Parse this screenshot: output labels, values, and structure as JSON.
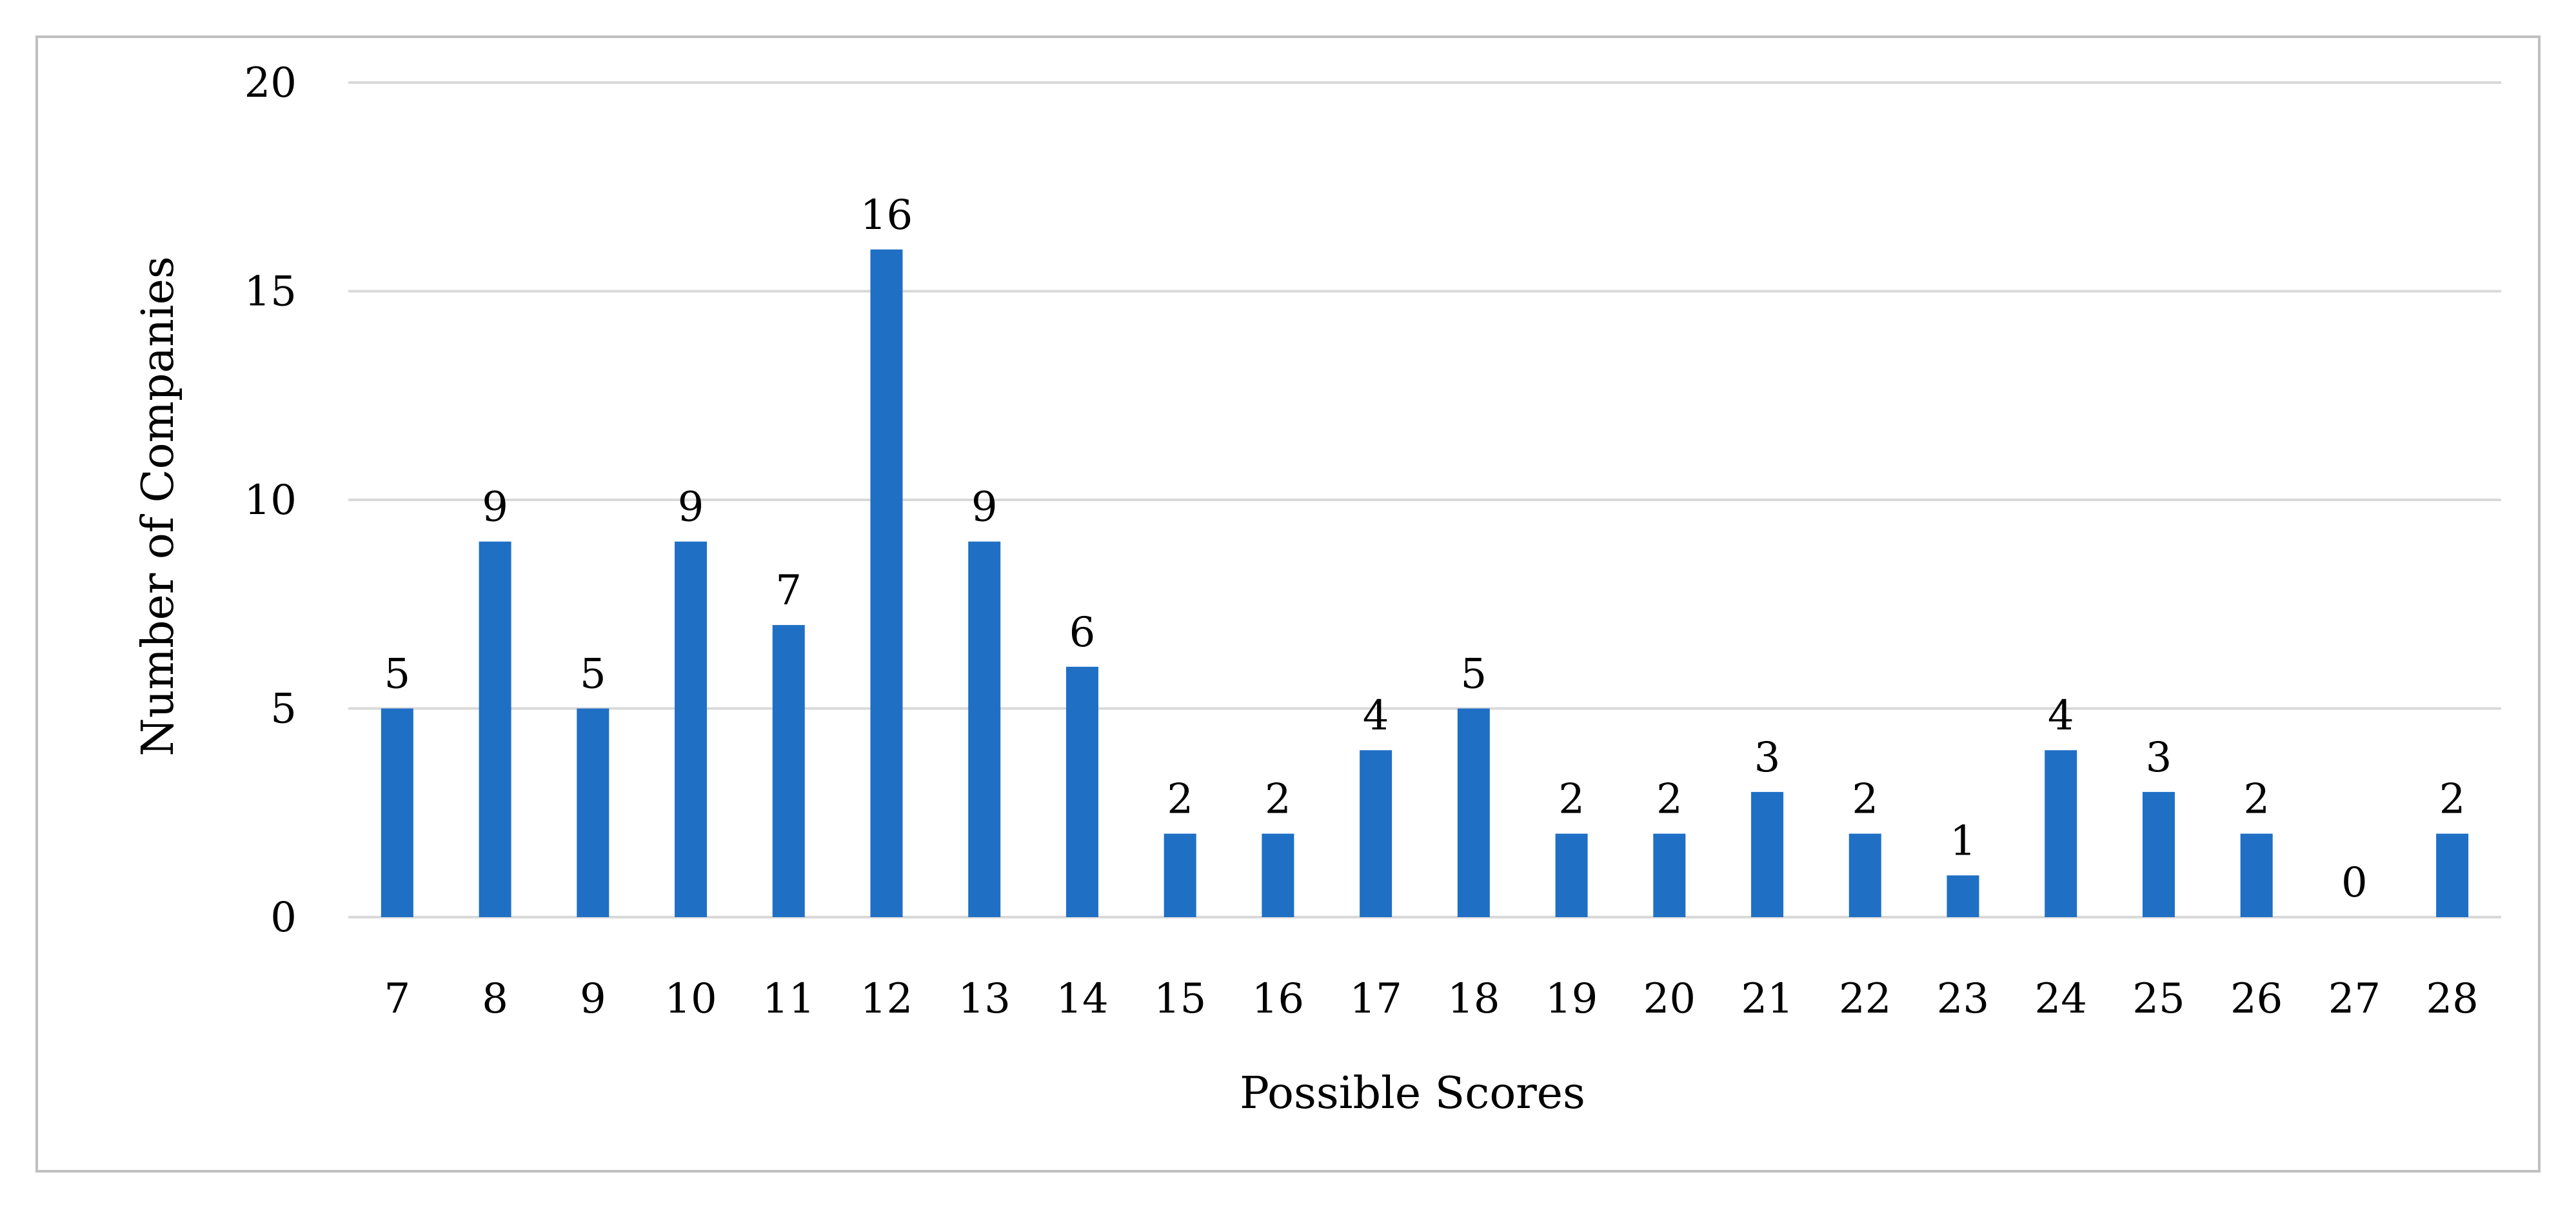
{
  "chart_data": {
    "type": "bar",
    "title": "",
    "xlabel": "Possible Scores",
    "ylabel": "Number of Companies",
    "categories": [
      "7",
      "8",
      "9",
      "10",
      "11",
      "12",
      "13",
      "14",
      "15",
      "16",
      "17",
      "18",
      "19",
      "20",
      "21",
      "22",
      "23",
      "24",
      "25",
      "26",
      "27",
      "28"
    ],
    "values": [
      5,
      9,
      5,
      9,
      7,
      16,
      9,
      6,
      2,
      2,
      4,
      5,
      2,
      2,
      3,
      2,
      1,
      4,
      3,
      2,
      0,
      2
    ],
    "ylim": [
      0,
      20
    ],
    "yticks": [
      "0",
      "5",
      "10",
      "15",
      "20"
    ],
    "grid": true,
    "bar_color": "#1f6fc5",
    "grid_color": "#d9d9d9",
    "legend": "none"
  }
}
